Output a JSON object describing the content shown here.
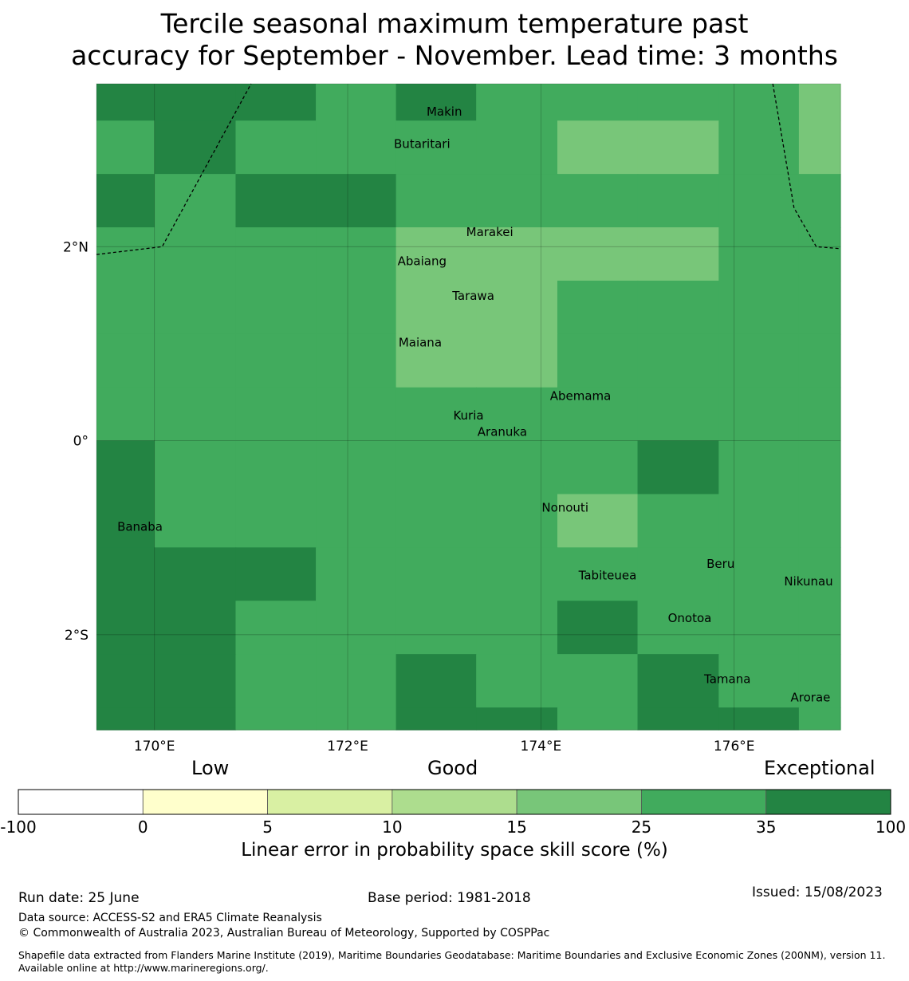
{
  "title_line1": "Tercile seasonal maximum temperature past",
  "title_line2": "accuracy for September - November. Lead time: 3 months",
  "map": {
    "lon_range": [
      169.4,
      177.1
    ],
    "lat_range": [
      -2.98,
      3.68
    ],
    "lon_ticks": [
      {
        "value": 170,
        "label": "170°E"
      },
      {
        "value": 172,
        "label": "172°E"
      },
      {
        "value": 174,
        "label": "174°E"
      },
      {
        "value": 176,
        "label": "176°E"
      }
    ],
    "lat_ticks": [
      {
        "value": 2,
        "label": "2°N"
      },
      {
        "value": 0,
        "label": "0°"
      },
      {
        "value": -2,
        "label": "2°S"
      }
    ],
    "grid": true,
    "cells_lon_edges": [
      169.4,
      170.0,
      170.84,
      171.67,
      172.5,
      173.33,
      174.17,
      175.0,
      175.84,
      176.67,
      177.1
    ],
    "cells_lat_edges": [
      3.68,
      3.3,
      2.75,
      2.2,
      1.65,
      1.1,
      0.55,
      0.0,
      -0.55,
      -1.1,
      -1.65,
      -2.2,
      -2.75,
      -2.98
    ],
    "cell_class_rows": [
      [
        6,
        6,
        6,
        5,
        6,
        5,
        5,
        5,
        5,
        4
      ],
      [
        5,
        6,
        5,
        5,
        5,
        5,
        4,
        4,
        5,
        4
      ],
      [
        6,
        5,
        6,
        6,
        5,
        5,
        5,
        5,
        5,
        5
      ],
      [
        5,
        5,
        5,
        5,
        4,
        4,
        4,
        4,
        5,
        5
      ],
      [
        5,
        5,
        5,
        5,
        4,
        4,
        5,
        5,
        5,
        5
      ],
      [
        5,
        5,
        5,
        5,
        4,
        4,
        5,
        5,
        5,
        5
      ],
      [
        5,
        5,
        5,
        5,
        5,
        5,
        5,
        5,
        5,
        5
      ],
      [
        6,
        5,
        5,
        5,
        5,
        5,
        5,
        6,
        5,
        5
      ],
      [
        6,
        5,
        5,
        5,
        5,
        5,
        4,
        5,
        5,
        5
      ],
      [
        6,
        6,
        6,
        5,
        5,
        5,
        5,
        5,
        5,
        5
      ],
      [
        6,
        6,
        5,
        5,
        5,
        5,
        6,
        5,
        5,
        5
      ],
      [
        6,
        6,
        5,
        5,
        6,
        5,
        5,
        6,
        5,
        5
      ],
      [
        6,
        6,
        5,
        5,
        6,
        6,
        5,
        6,
        6,
        5
      ]
    ],
    "places": [
      {
        "name": "Makin",
        "lon": 173.0,
        "lat": 3.35
      },
      {
        "name": "Butaritari",
        "lon": 172.77,
        "lat": 3.02
      },
      {
        "name": "Marakei",
        "lon": 173.47,
        "lat": 2.11
      },
      {
        "name": "Abaiang",
        "lon": 172.77,
        "lat": 1.81
      },
      {
        "name": "Tarawa",
        "lon": 173.3,
        "lat": 1.45
      },
      {
        "name": "Maiana",
        "lon": 172.75,
        "lat": 0.97
      },
      {
        "name": "Abemama",
        "lon": 174.41,
        "lat": 0.42
      },
      {
        "name": "Kuria",
        "lon": 173.25,
        "lat": 0.22
      },
      {
        "name": "Aranuka",
        "lon": 173.6,
        "lat": 0.05
      },
      {
        "name": "Nonouti",
        "lon": 174.25,
        "lat": -0.73
      },
      {
        "name": "Banaba",
        "lon": 169.85,
        "lat": -0.93
      },
      {
        "name": "Beru",
        "lon": 175.86,
        "lat": -1.31
      },
      {
        "name": "Tabiteuea",
        "lon": 174.69,
        "lat": -1.43
      },
      {
        "name": "Nikunau",
        "lon": 176.77,
        "lat": -1.49
      },
      {
        "name": "Onotoa",
        "lon": 175.54,
        "lat": -1.87
      },
      {
        "name": "Tamana",
        "lon": 175.93,
        "lat": -2.5
      },
      {
        "name": "Arorae",
        "lon": 176.79,
        "lat": -2.69
      }
    ]
  },
  "categories": {
    "low": "Low",
    "good": "Good",
    "exceptional": "Exceptional"
  },
  "colorbar": {
    "colors": [
      "#ffffff",
      "#ffffcc",
      "#d9f0a3",
      "#addd8e",
      "#78c679",
      "#41ab5d",
      "#238443"
    ],
    "ticks": [
      "-100",
      "0",
      "5",
      "10",
      "15",
      "25",
      "35",
      "100"
    ],
    "label": "Linear error in probability space skill score (%)"
  },
  "footer": {
    "run_date": "Run date: 25 June",
    "base_period": "Base period: 1981-2018",
    "issued": "Issued: 15/08/2023",
    "data_source": "Data source: ACCESS-S2 and ERA5 Climate Reanalysis",
    "copyright": "© Commonwealth of Australia 2023, Australian Bureau of Meteorology, Supported by COSPPac",
    "shapefile": "Shapefile data extracted from Flanders Marine Institute (2019), Maritime Boundaries Geodatabase: Maritime Boundaries and Exclusive Economic Zones (200NM), version 11. Available online at http://www.marineregions.org/."
  }
}
